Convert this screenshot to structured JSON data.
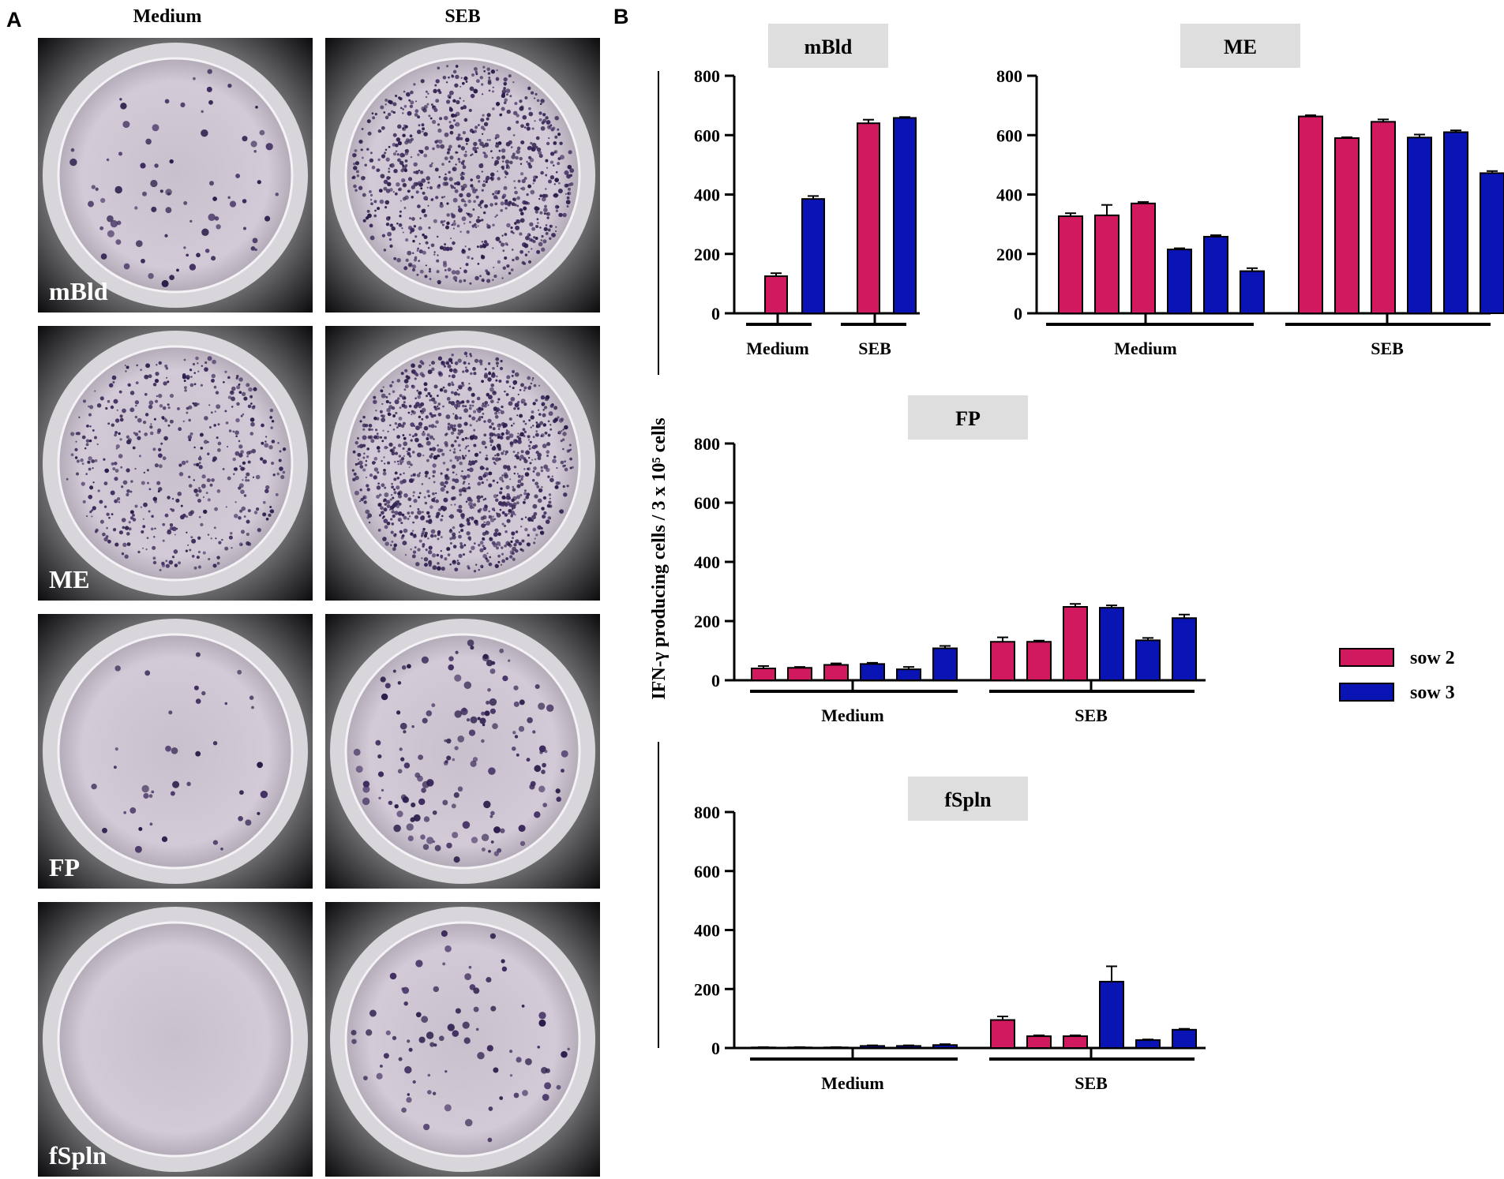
{
  "panel_a": {
    "label": "A",
    "columns": [
      "Medium",
      "SEB"
    ],
    "rows": [
      {
        "label": "mBld",
        "spots": {
          "Medium": 80,
          "SEB": 900
        }
      },
      {
        "label": "ME",
        "spots": {
          "Medium": 500,
          "SEB": 1200
        }
      },
      {
        "label": "FP",
        "spots": {
          "Medium": 40,
          "SEB": 150
        }
      },
      {
        "label": "fSpln",
        "spots": {
          "Medium": 0,
          "SEB": 80
        }
      }
    ]
  },
  "panel_b": {
    "label": "B",
    "legend": [
      {
        "name": "sow 2",
        "color": "#d0195f"
      },
      {
        "name": "sow 3",
        "color": "#0a14b5"
      }
    ]
  },
  "chart_data": [
    {
      "type": "bar",
      "title": "mBld",
      "ylabel": "IFN-γ producing cells / 3 x 10⁵ cells",
      "ylim": [
        0,
        800
      ],
      "yticks": [
        0,
        200,
        400,
        600,
        800
      ],
      "groups": [
        "Medium",
        "SEB"
      ],
      "series": [
        {
          "name": "sow 2",
          "values": [
            [
              125
            ],
            [
              640
            ]
          ],
          "errors": [
            [
              10
            ],
            [
              12
            ]
          ]
        },
        {
          "name": "sow 3",
          "values": [
            [
              385
            ],
            [
              658
            ]
          ],
          "errors": [
            [
              10
            ],
            [
              3
            ]
          ]
        }
      ]
    },
    {
      "type": "bar",
      "title": "ME",
      "ylim": [
        0,
        800
      ],
      "yticks": [
        0,
        200,
        400,
        600,
        800
      ],
      "groups": [
        "Medium",
        "SEB"
      ],
      "series": [
        {
          "name": "sow 2",
          "values": [
            [
              327,
              330,
              370
            ],
            [
              663,
              590,
              645
            ]
          ],
          "errors": [
            [
              10,
              35,
              5
            ],
            [
              4,
              3,
              8
            ]
          ]
        },
        {
          "name": "sow 3",
          "values": [
            [
              215,
              258,
              142
            ],
            [
              592,
              610,
              472
            ]
          ],
          "errors": [
            [
              4,
              5,
              10
            ],
            [
              10,
              6,
              7
            ]
          ]
        }
      ]
    },
    {
      "type": "bar",
      "title": "FP",
      "ylim": [
        0,
        800
      ],
      "yticks": [
        0,
        200,
        400,
        600,
        800
      ],
      "groups": [
        "Medium",
        "SEB"
      ],
      "series": [
        {
          "name": "sow 2",
          "values": [
            [
              40,
              42,
              52
            ],
            [
              130,
              130,
              248
            ]
          ],
          "errors": [
            [
              8,
              3,
              5
            ],
            [
              15,
              4,
              10
            ]
          ]
        },
        {
          "name": "sow 3",
          "values": [
            [
              55,
              37,
              108
            ],
            [
              245,
              135,
              210
            ]
          ],
          "errors": [
            [
              4,
              8,
              8
            ],
            [
              8,
              8,
              12
            ]
          ]
        }
      ]
    },
    {
      "type": "bar",
      "title": "fSpln",
      "ylim": [
        0,
        800
      ],
      "yticks": [
        0,
        200,
        400,
        600,
        800
      ],
      "groups": [
        "Medium",
        "SEB"
      ],
      "series": [
        {
          "name": "sow 2",
          "values": [
            [
              2,
              2,
              2
            ],
            [
              95,
              40,
              40
            ]
          ],
          "errors": [
            [
              1,
              1,
              1
            ],
            [
              12,
              3,
              3
            ]
          ]
        },
        {
          "name": "sow 3",
          "values": [
            [
              7,
              7,
              10
            ],
            [
              225,
              27,
              62
            ]
          ],
          "errors": [
            [
              2,
              2,
              3
            ],
            [
              52,
              2,
              3
            ]
          ]
        }
      ]
    }
  ]
}
